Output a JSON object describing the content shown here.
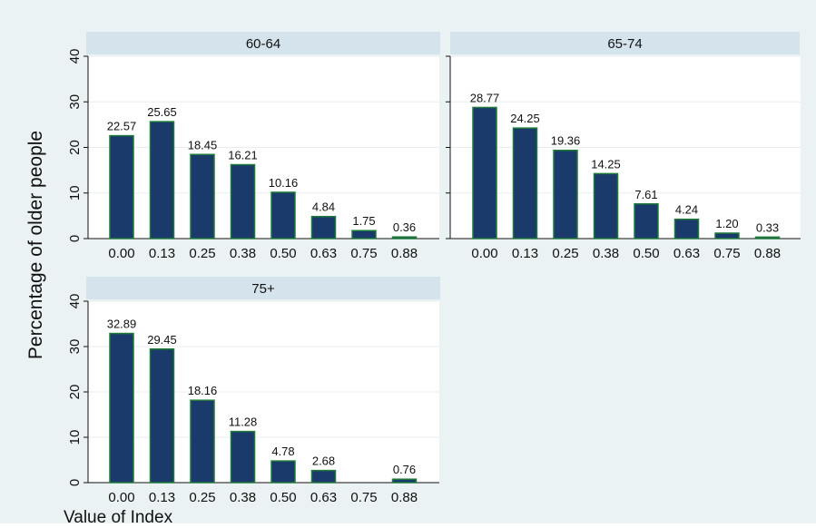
{
  "colors": {
    "outer_background": "#eaf2f3",
    "panel_background": "#ffffff",
    "strip_background": "#d5e3ec",
    "bar_fill": "#1a3a6c",
    "bar_stroke": "#1f7a3a",
    "grid": "#e8eef0",
    "text": "#111111"
  },
  "chart_data": {
    "type": "bar",
    "ylabel": "Percentage of older people",
    "xlabel": "Value of Index",
    "ylim": [
      0,
      40
    ],
    "yticks": [
      0,
      10,
      20,
      30,
      40
    ],
    "categories": [
      "0.00",
      "0.13",
      "0.25",
      "0.38",
      "0.50",
      "0.63",
      "0.75",
      "0.88"
    ],
    "grid": true,
    "panels": [
      {
        "title": "60-64",
        "values": [
          22.57,
          25.65,
          18.45,
          16.21,
          10.16,
          4.84,
          1.75,
          0.36
        ],
        "labels": [
          "22.57",
          "25.65",
          "18.45",
          "16.21",
          "10.16",
          "4.84",
          "1.75",
          "0.36"
        ]
      },
      {
        "title": "65-74",
        "values": [
          28.77,
          24.25,
          19.36,
          14.25,
          7.61,
          4.24,
          1.2,
          0.33
        ],
        "labels": [
          "28.77",
          "24.25",
          "19.36",
          "14.25",
          "7.61",
          "4.24",
          "1.20",
          "0.33"
        ]
      },
      {
        "title": "75+",
        "values": [
          32.89,
          29.45,
          18.16,
          11.28,
          4.78,
          2.68,
          0,
          0.76
        ],
        "labels": [
          "32.89",
          "29.45",
          "18.16",
          "11.28",
          "4.78",
          "2.68",
          "",
          "0.76"
        ]
      }
    ]
  }
}
